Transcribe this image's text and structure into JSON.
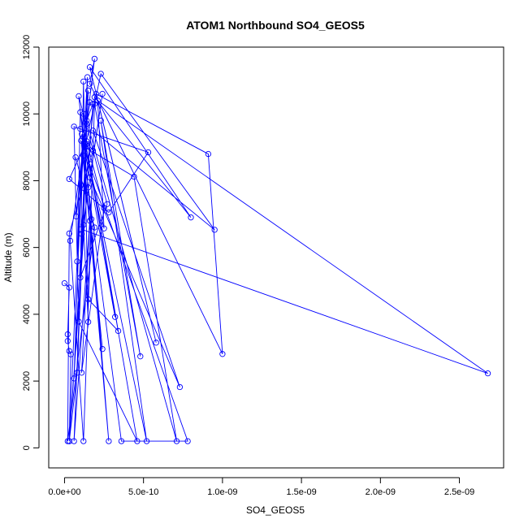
{
  "chart_data": {
    "type": "line",
    "title": "ATOM1 Northbound SO4_GEOS5",
    "xlabel": "SO4_GEOS5",
    "ylabel": "Altitude (m)",
    "xlim": [
      -1e-10,
      2.78e-09
    ],
    "ylim": [
      -600,
      12000
    ],
    "x_ticks": [
      0,
      5e-10,
      1e-09,
      1.5e-09,
      2e-09,
      2.5e-09
    ],
    "x_tick_labels": [
      "0.0e+00",
      "5.0e-10",
      "1.0e-09",
      "1.5e-09",
      "2.0e-09",
      "2.5e-09"
    ],
    "y_ticks": [
      0,
      2000,
      4000,
      6000,
      8000,
      10000,
      12000
    ],
    "y_tick_labels": [
      "0",
      "2000",
      "4000",
      "6000",
      "8000",
      "10000",
      "12000"
    ],
    "grid": false,
    "legend": "none",
    "series": [
      {
        "color": "#0000ff",
        "marker": "open-circle",
        "points": [
          [
            0.0,
            4930
          ],
          [
            3e-11,
            4800
          ],
          [
            2e-11,
            3400
          ],
          [
            2e-11,
            3200
          ],
          [
            3e-11,
            2900
          ],
          [
            4e-11,
            2800
          ],
          [
            3e-11,
            200
          ],
          [
            8e-11,
            2250
          ],
          [
            1.4e-10,
            9100
          ],
          [
            6e-11,
            2080
          ],
          [
            1.2e-10,
            10000
          ],
          [
            3e-11,
            200
          ],
          [
            1.8e-10,
            10300
          ],
          [
            1.4e-10,
            9800
          ],
          [
            7.1e-10,
            200
          ],
          [
            4.4e-10,
            8120
          ],
          [
            1.3e-10,
            9000
          ],
          [
            2.3e-10,
            11200
          ],
          [
            9.5e-10,
            6530
          ],
          [
            1.8e-10,
            9500
          ],
          [
            7.3e-10,
            1820
          ],
          [
            1.6e-10,
            8100
          ],
          [
            2.4e-10,
            10600
          ],
          [
            1.09e-10,
            6400
          ],
          [
            1.4e-10,
            9700
          ],
          [
            1.9e-10,
            11650
          ],
          [
            1.6e-10,
            10900
          ],
          [
            1e-09,
            2810
          ],
          [
            9.1e-10,
            8800
          ],
          [
            2e-10,
            10600
          ],
          [
            5.8e-10,
            3150
          ],
          [
            1.6e-10,
            11400
          ],
          [
            8e-10,
            6900
          ],
          [
            1.9e-10,
            10500
          ],
          [
            1.05e-10,
            6550
          ],
          [
            2.68e-09,
            2230
          ],
          [
            2.1e-10,
            10400
          ],
          [
            2.5e-10,
            6570
          ],
          [
            1.3e-10,
            9000
          ],
          [
            5.2e-10,
            200
          ],
          [
            2.3e-10,
            9800
          ],
          [
            4.8e-10,
            2740
          ],
          [
            1.9e-10,
            10300
          ],
          [
            1.5e-10,
            4450
          ],
          [
            3.4e-10,
            3500
          ],
          [
            1.6e-10,
            8500
          ],
          [
            3.2e-10,
            3920
          ],
          [
            1.1e-10,
            9400
          ],
          [
            2.8e-10,
            200
          ],
          [
            1.5e-10,
            7800
          ],
          [
            3.6e-10,
            200
          ],
          [
            7.8e-10,
            200
          ],
          [
            1.05e-10,
            9200
          ],
          [
            2.4e-10,
            2960
          ],
          [
            1.2e-10,
            8750
          ],
          [
            7.4e-11,
            6930
          ],
          [
            1.5e-10,
            10700
          ],
          [
            6e-11,
            200
          ],
          [
            1.6e-10,
            6800
          ],
          [
            1.08e-10,
            2250
          ],
          [
            2.5e-10,
            7180
          ],
          [
            1.4e-10,
            9180
          ],
          [
            3e-11,
            8050
          ],
          [
            2.8e-10,
            7050
          ],
          [
            5.3e-10,
            8850
          ],
          [
            1e-10,
            9550
          ],
          [
            6e-11,
            9620
          ],
          [
            9e-11,
            3780
          ],
          [
            4.6e-10,
            200
          ],
          [
            1e-10,
            10050
          ],
          [
            8e-11,
            5580
          ],
          [
            1.45e-10,
            11100
          ],
          [
            1.2e-10,
            6680
          ],
          [
            1.5e-10,
            3770
          ],
          [
            1.2e-10,
            10970
          ],
          [
            1e-10,
            5100
          ],
          [
            2.7e-10,
            7300
          ],
          [
            9e-11,
            10530
          ],
          [
            1.7e-10,
            6850
          ],
          [
            1.2e-10,
            200
          ],
          [
            3.6e-11,
            6200
          ],
          [
            1.6e-10,
            10350
          ],
          [
            1.2e-10,
            9300
          ],
          [
            1.8e-10,
            8900
          ],
          [
            3e-11,
            6420
          ],
          [
            2e-11,
            200
          ],
          [
            1.9e-10,
            6600
          ],
          [
            7e-11,
            8700
          ]
        ]
      }
    ]
  }
}
